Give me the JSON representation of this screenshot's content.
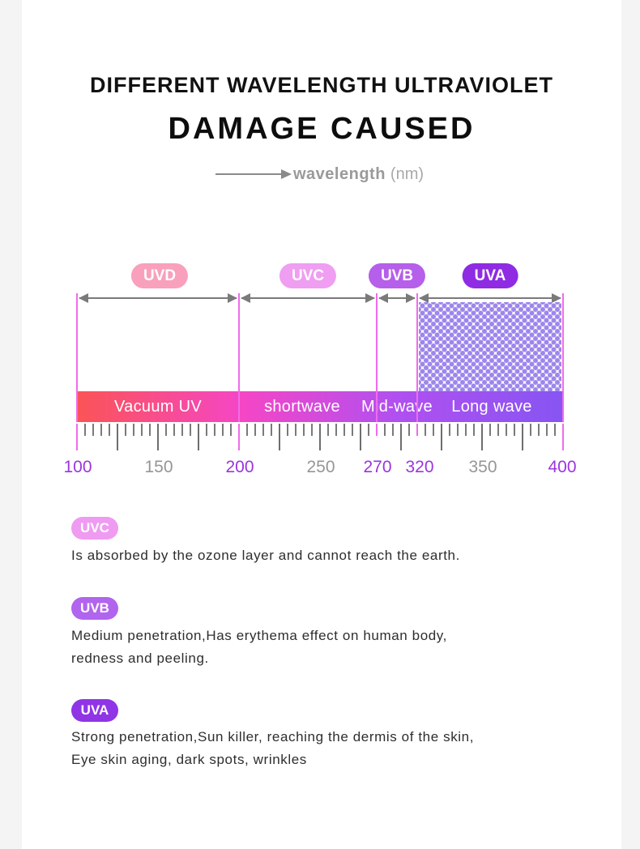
{
  "page": {
    "background": "#ffffff",
    "gutter_color": "#f4f4f4"
  },
  "header": {
    "title_line1": "DIFFERENT WAVELENGTH ULTRAVIOLET",
    "title_line2": "DAMAGE CAUSED",
    "axis_caption": {
      "label": "wavelength",
      "unit": "(nm)"
    }
  },
  "spectrum": {
    "bands": [
      {
        "id": "uvd",
        "label": "UVD",
        "badge_color": "#f8a0bc",
        "range_nm": [
          100,
          200
        ],
        "bar_label": "Vacuum UV"
      },
      {
        "id": "uvc",
        "label": "UVC",
        "badge_color": "#ef9ef2",
        "range_nm": [
          200,
          270
        ],
        "bar_label": "shortwave"
      },
      {
        "id": "uvb",
        "label": "UVB",
        "badge_color": "#b55fea",
        "range_nm": [
          270,
          320
        ],
        "bar_label": "Mid-wave"
      },
      {
        "id": "uva",
        "label": "UVA",
        "badge_color": "#8f2be3",
        "range_nm": [
          320,
          400
        ],
        "bar_label": "Long wave"
      }
    ],
    "bar_gradient": [
      "#fa5456",
      "#f546c6",
      "#b050f0",
      "#8755f2"
    ],
    "axis_labels": [
      {
        "value": "100",
        "highlight": true
      },
      {
        "value": "150",
        "highlight": false
      },
      {
        "value": "200",
        "highlight": true
      },
      {
        "value": "250",
        "highlight": false
      },
      {
        "value": "270",
        "highlight": true
      },
      {
        "value": "320",
        "highlight": true
      },
      {
        "value": "350",
        "highlight": false
      },
      {
        "value": "400",
        "highlight": true
      }
    ],
    "colors": {
      "guide_line": "#f06cea",
      "arrow": "#7a7a7a",
      "tick_gray": "#7a7a7a",
      "axis_label_purple": "#9b35df",
      "axis_label_gray": "#969696",
      "dot_pattern": "#9d86ec"
    }
  },
  "sections": [
    {
      "badge": "UVC",
      "badge_color": "#ef9bf2",
      "lines": [
        "Is absorbed by the ozone layer and cannot reach the earth."
      ]
    },
    {
      "badge": "UVB",
      "badge_color": "#b164ee",
      "lines": [
        "Medium penetration,Has erythema effect on human body,",
        "redness and peeling."
      ]
    },
    {
      "badge": "UVA",
      "badge_color": "#8f35e6",
      "lines": [
        "Strong penetration,Sun killer, reaching the dermis of the skin,",
        "Eye skin aging, dark spots, wrinkles"
      ]
    }
  ]
}
